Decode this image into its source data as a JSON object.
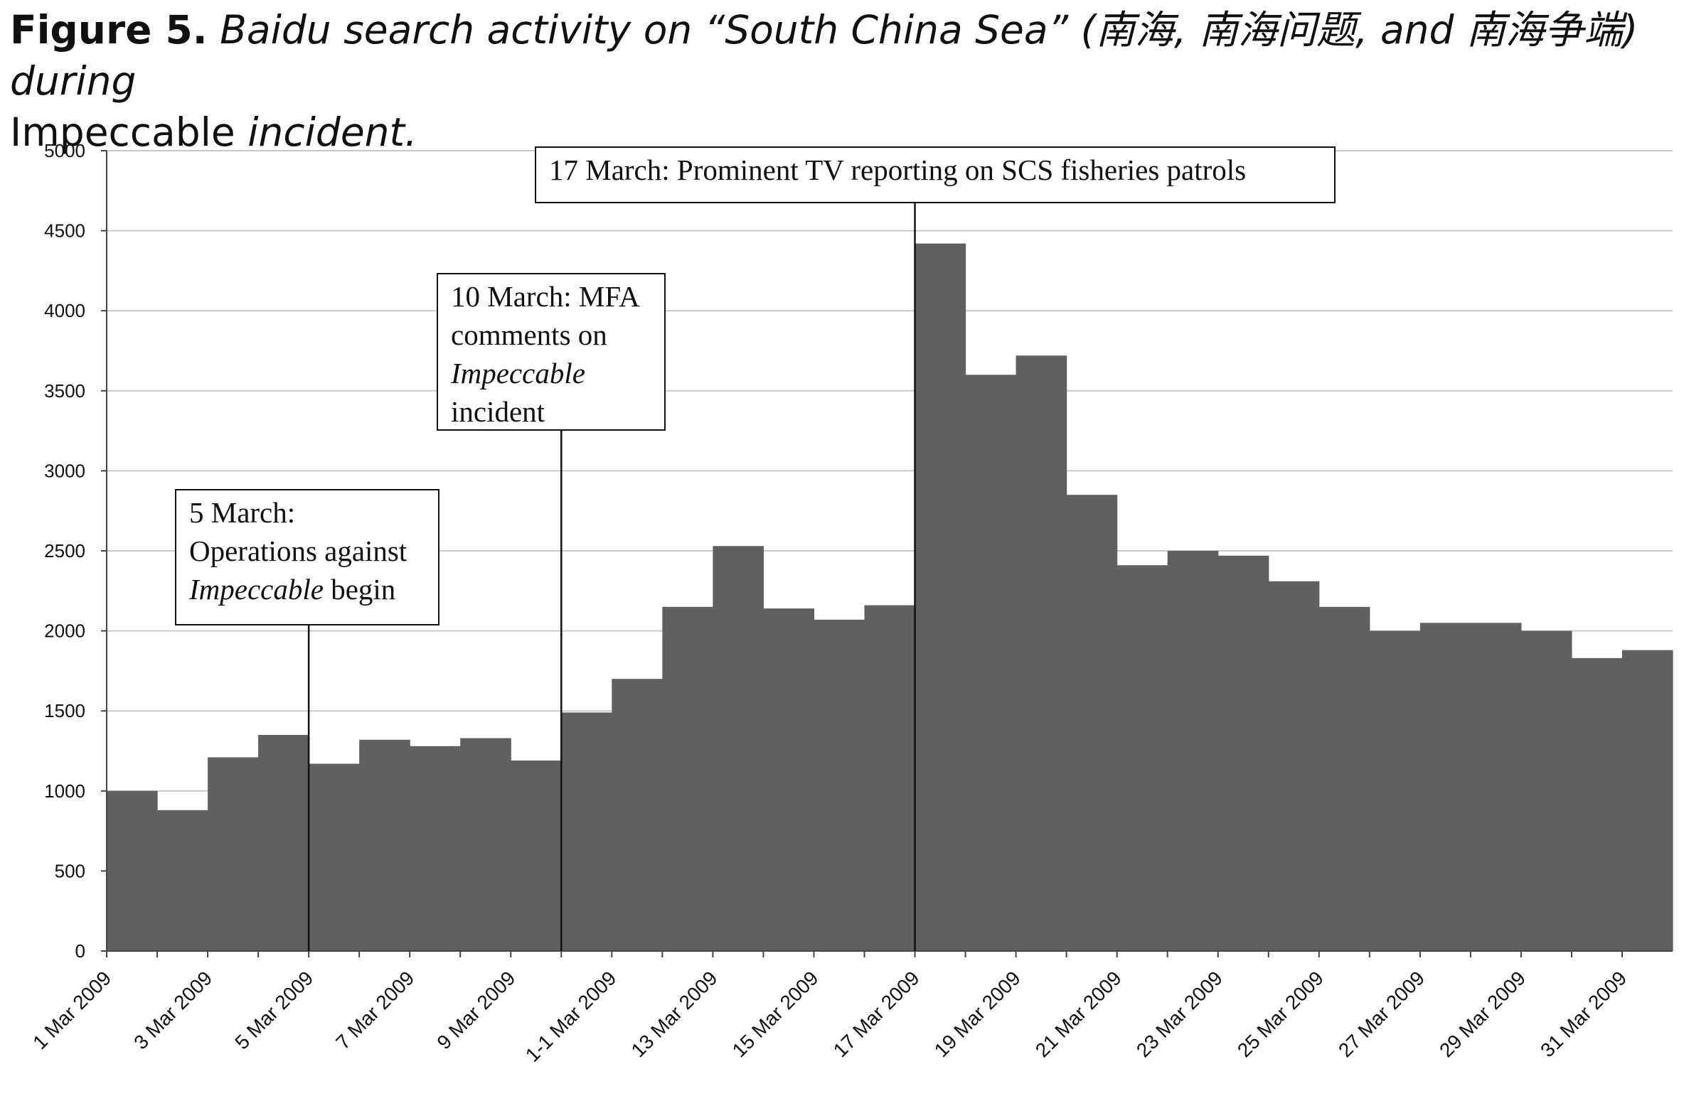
{
  "caption": {
    "label": "Figure 5.",
    "text_italic": "Baidu search activity on “South China Sea” (南海, 南海问题, and 南海争端) during",
    "text_roman": "Impeccable",
    "text_end": "incident."
  },
  "chart_data": {
    "type": "bar",
    "title": "",
    "xlabel": "",
    "ylabel": "",
    "ylim": [
      0,
      5000
    ],
    "yticks": [
      0,
      500,
      1000,
      1500,
      2000,
      2500,
      3000,
      3500,
      4000,
      4500,
      5000
    ],
    "grid": true,
    "x_tick_labels": [
      "1 Mar 2009",
      "3 Mar 2009",
      "5 Mar 2009",
      "7 Mar 2009",
      "9 Mar 2009",
      "1-1 Mar 2009",
      "13 Mar 2009",
      "15 Mar 2009",
      "17 Mar 2009",
      "19 Mar 2009",
      "21 Mar 2009",
      "23 Mar 2009",
      "25 Mar 2009",
      "27 Mar 2009",
      "29 Mar 2009",
      "31 Mar 2009"
    ],
    "categories": [
      "1 Mar 2009",
      "2 Mar 2009",
      "3 Mar 2009",
      "4 Mar 2009",
      "5 Mar 2009",
      "6 Mar 2009",
      "7 Mar 2009",
      "8 Mar 2009",
      "9 Mar 2009",
      "10 Mar 2009",
      "11 Mar 2009",
      "12 Mar 2009",
      "13 Mar 2009",
      "14 Mar 2009",
      "15 Mar 2009",
      "16 Mar 2009",
      "17 Mar 2009",
      "18 Mar 2009",
      "19 Mar 2009",
      "20 Mar 2009",
      "21 Mar 2009",
      "22 Mar 2009",
      "23 Mar 2009",
      "24 Mar 2009",
      "25 Mar 2009",
      "26 Mar 2009",
      "27 Mar 2009",
      "28 Mar 2009",
      "29 Mar 2009",
      "30 Mar 2009",
      "31 Mar 2009"
    ],
    "values": [
      1000,
      880,
      1210,
      1350,
      1170,
      1320,
      1280,
      1330,
      1190,
      1490,
      1700,
      2150,
      2530,
      2140,
      2070,
      2160,
      4420,
      3600,
      3720,
      2850,
      2410,
      2500,
      2470,
      2310,
      2150,
      2000,
      2050,
      2050,
      2000,
      1830,
      1880
    ],
    "bar_color": "#606060",
    "annotations": [
      {
        "category": "5 Mar 2009",
        "lines": [
          [
            "5 March:"
          ],
          [
            "Operations against"
          ],
          [
            "",
            "Impeccable",
            " begin"
          ]
        ]
      },
      {
        "category": "10 Mar 2009",
        "lines": [
          [
            "10 March: MFA"
          ],
          [
            "comments on"
          ],
          [
            "",
            "Impeccable",
            ""
          ],
          [
            "incident"
          ]
        ]
      },
      {
        "category": "17 Mar 2009",
        "lines": [
          [
            "17 March: Prominent TV reporting on SCS fisheries patrols"
          ]
        ]
      }
    ]
  }
}
